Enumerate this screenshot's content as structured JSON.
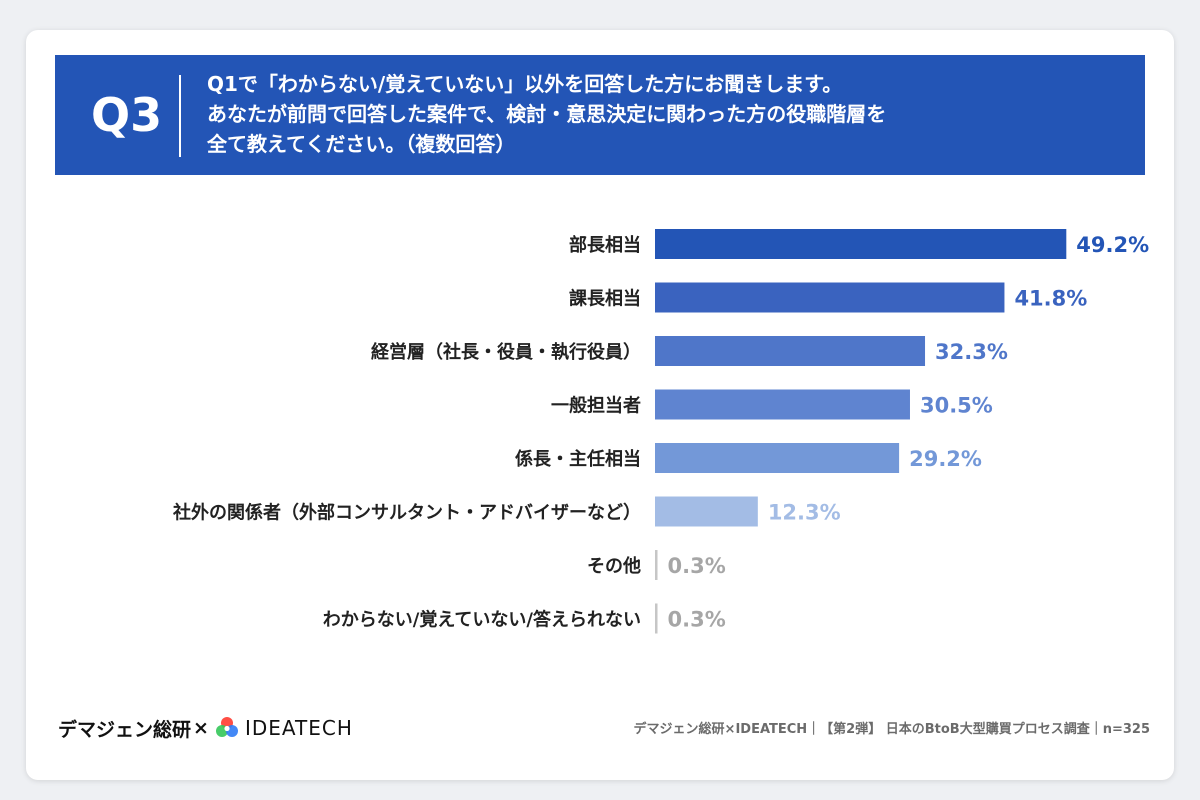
{
  "header": {
    "q_number": "Q3",
    "question_lines": [
      "Q1で「わからない/覚えていない」以外を回答した方にお聞きします。",
      "あなたが前問で回答した案件で、検討・意思決定に関わった方の役職階層を",
      "全て教えてください。（複数回答）"
    ]
  },
  "chart_data": {
    "type": "bar",
    "orientation": "horizontal",
    "categories": [
      "部長相当",
      "課長相当",
      "経営層（社長・役員・執行役員）",
      "一般担当者",
      "係長・主任相当",
      "社外の関係者（外部コンサルタント・アドバイザーなど）",
      "その他",
      "わからない/覚えていない/答えられない"
    ],
    "values": [
      49.2,
      41.8,
      32.3,
      30.5,
      29.2,
      12.3,
      0.3,
      0.3
    ],
    "data_labels": [
      "49.2%",
      "41.8%",
      "32.3%",
      "30.5%",
      "29.2%",
      "12.3%",
      "0.3%",
      "0.3%"
    ],
    "bar_colors": [
      "#2355b6",
      "#3a63bf",
      "#4f76c9",
      "#5f84d0",
      "#7398d8",
      "#a3bce5",
      "#c6c6c6",
      "#c6c6c6"
    ],
    "label_colors": [
      "#2355b6",
      "#3a63bf",
      "#4f76c9",
      "#5f84d0",
      "#7398d8",
      "#a3bce5",
      "#a6a6a6",
      "#a6a6a6"
    ],
    "xlim": [
      0,
      50
    ],
    "grid": false,
    "legend": "none"
  },
  "footer": {
    "brand_ja": "デマジェン総研",
    "brand_x": "×",
    "brand_en": "IDEATECH",
    "source": "デマジェン総研×IDEATECH｜【第2弾】 日本のBtoB大型購買プロセス調査｜n=325"
  }
}
